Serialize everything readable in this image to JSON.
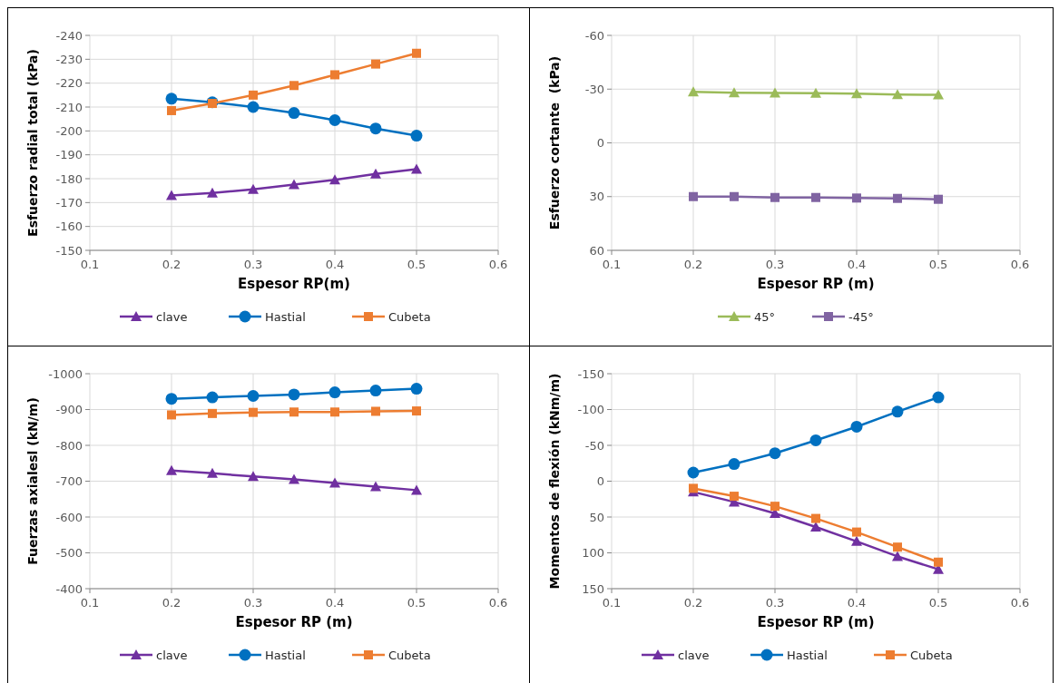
{
  "chart_data": [
    {
      "type": "line",
      "xlabel": "Espesor  RP(m)",
      "ylabel": "Esfuerzo radial total (kPa)",
      "x": [
        0.2,
        0.25,
        0.3,
        0.35,
        0.4,
        0.45,
        0.5
      ],
      "xlim": [
        0.1,
        0.6
      ],
      "xticks": [
        0.1,
        0.2,
        0.3,
        0.4,
        0.5,
        0.6
      ],
      "ylim": [
        -150,
        -240
      ],
      "yticks": [
        -150,
        -160,
        -170,
        -180,
        -190,
        -200,
        -210,
        -220,
        -230,
        -240
      ],
      "grid": true,
      "legend": "bottom",
      "series": [
        {
          "name": "clave",
          "color": "#7030a0",
          "marker": "triangle",
          "values": [
            -173,
            -174,
            -175.5,
            -177.5,
            -179.5,
            -182,
            -184
          ]
        },
        {
          "name": "Hastial",
          "color": "#0070c0",
          "marker": "circle",
          "values": [
            -213.5,
            -212,
            -210,
            -207.5,
            -204.5,
            -201,
            -198
          ]
        },
        {
          "name": "Cubeta",
          "color": "#ed7d31",
          "marker": "square",
          "values": [
            -208.5,
            -211.5,
            -215,
            -219,
            -223.5,
            -228,
            -232.5
          ]
        }
      ]
    },
    {
      "type": "line",
      "xlabel": "Espesor RP (m)",
      "ylabel": "Esfuerzo cortante  (kPa)",
      "x": [
        0.2,
        0.25,
        0.3,
        0.35,
        0.4,
        0.45,
        0.5
      ],
      "xlim": [
        0.1,
        0.6
      ],
      "xticks": [
        0.1,
        0.2,
        0.3,
        0.4,
        0.5,
        0.6
      ],
      "ylim": [
        60,
        -60
      ],
      "yticks": [
        60,
        30,
        0,
        -30,
        -60
      ],
      "grid": true,
      "legend": "bottom",
      "series": [
        {
          "name": "45°",
          "color": "#9bbb59",
          "marker": "triangle",
          "values": [
            -28.5,
            -28,
            -27.8,
            -27.7,
            -27.5,
            -27,
            -26.8
          ]
        },
        {
          "name": "-45°",
          "color": "#8064a2",
          "marker": "square",
          "values": [
            30,
            30,
            30.5,
            30.5,
            30.8,
            31,
            31.5
          ]
        }
      ]
    },
    {
      "type": "line",
      "xlabel": "Espesor RP (m)",
      "ylabel": "Fuerzas axialesl (kN/m)",
      "x": [
        0.2,
        0.25,
        0.3,
        0.35,
        0.4,
        0.45,
        0.5
      ],
      "xlim": [
        0.1,
        0.6
      ],
      "xticks": [
        0.1,
        0.2,
        0.3,
        0.4,
        0.5,
        0.6
      ],
      "ylim": [
        -400,
        -1000
      ],
      "yticks": [
        -400,
        -500,
        -600,
        -700,
        -800,
        -900,
        -1000
      ],
      "grid": true,
      "legend": "bottom",
      "series": [
        {
          "name": "clave",
          "color": "#7030a0",
          "marker": "triangle",
          "values": [
            -730,
            -722,
            -713,
            -705,
            -695,
            -685,
            -675
          ]
        },
        {
          "name": "Hastial",
          "color": "#0070c0",
          "marker": "circle",
          "values": [
            -930,
            -934,
            -938,
            -942,
            -948,
            -953,
            -958
          ]
        },
        {
          "name": "Cubeta",
          "color": "#ed7d31",
          "marker": "square",
          "values": [
            -885,
            -889,
            -892,
            -893,
            -893,
            -895,
            -896
          ]
        }
      ]
    },
    {
      "type": "line",
      "xlabel": "Espesor RP (m)",
      "ylabel": "Momentos de flexión (kNm/m)",
      "x": [
        0.2,
        0.25,
        0.3,
        0.35,
        0.4,
        0.45,
        0.5
      ],
      "xlim": [
        0.1,
        0.6
      ],
      "xticks": [
        0.1,
        0.2,
        0.3,
        0.4,
        0.5,
        0.6
      ],
      "ylim": [
        150,
        -150
      ],
      "yticks": [
        150,
        100,
        50,
        0,
        -50,
        -100,
        -150
      ],
      "grid": true,
      "legend": "bottom",
      "series": [
        {
          "name": "clave",
          "color": "#7030a0",
          "marker": "triangle",
          "values": [
            15,
            29,
            45,
            64,
            84,
            105,
            123
          ]
        },
        {
          "name": "Hastial",
          "color": "#0070c0",
          "marker": "circle",
          "values": [
            -12,
            -24,
            -39,
            -57,
            -76,
            -97,
            -117
          ]
        },
        {
          "name": "Cubeta",
          "color": "#ed7d31",
          "marker": "square",
          "values": [
            10,
            21,
            35,
            52,
            71,
            92,
            113
          ]
        }
      ]
    }
  ]
}
